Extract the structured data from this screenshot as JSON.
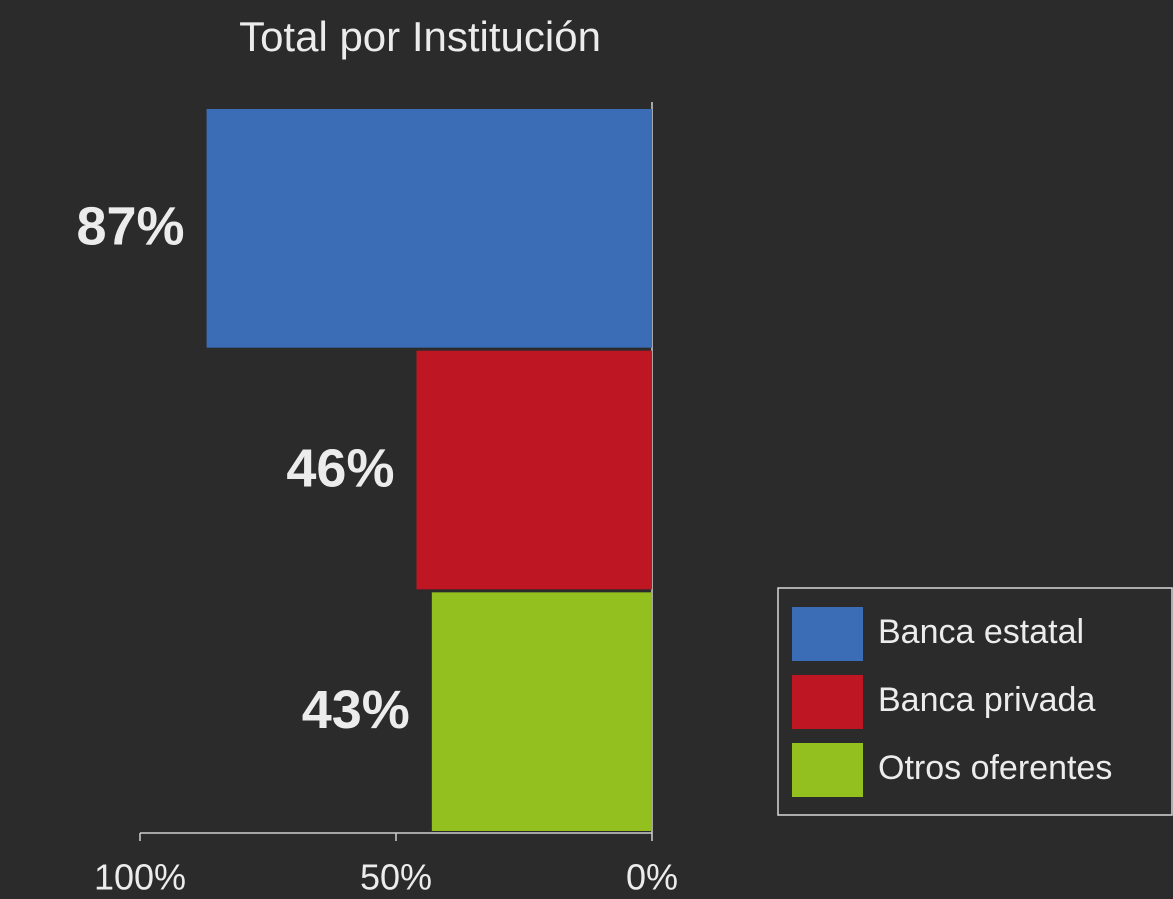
{
  "chart_data": {
    "type": "hbar",
    "title": "Total por Institución",
    "categories": [
      "Banca estatal",
      "Banca privada",
      "Otros oferentes"
    ],
    "values": [
      87,
      46,
      43
    ],
    "value_labels": [
      "87%",
      "46%",
      "43%"
    ],
    "colors": [
      "#3a6db5",
      "#be1622",
      "#93c01f"
    ],
    "xlim": [
      100,
      0
    ],
    "xticks": [
      {
        "value": 100,
        "label": "100%"
      },
      {
        "value": 50,
        "label": "50%"
      },
      {
        "value": 0,
        "label": "0%"
      }
    ],
    "legend": "lower right"
  }
}
